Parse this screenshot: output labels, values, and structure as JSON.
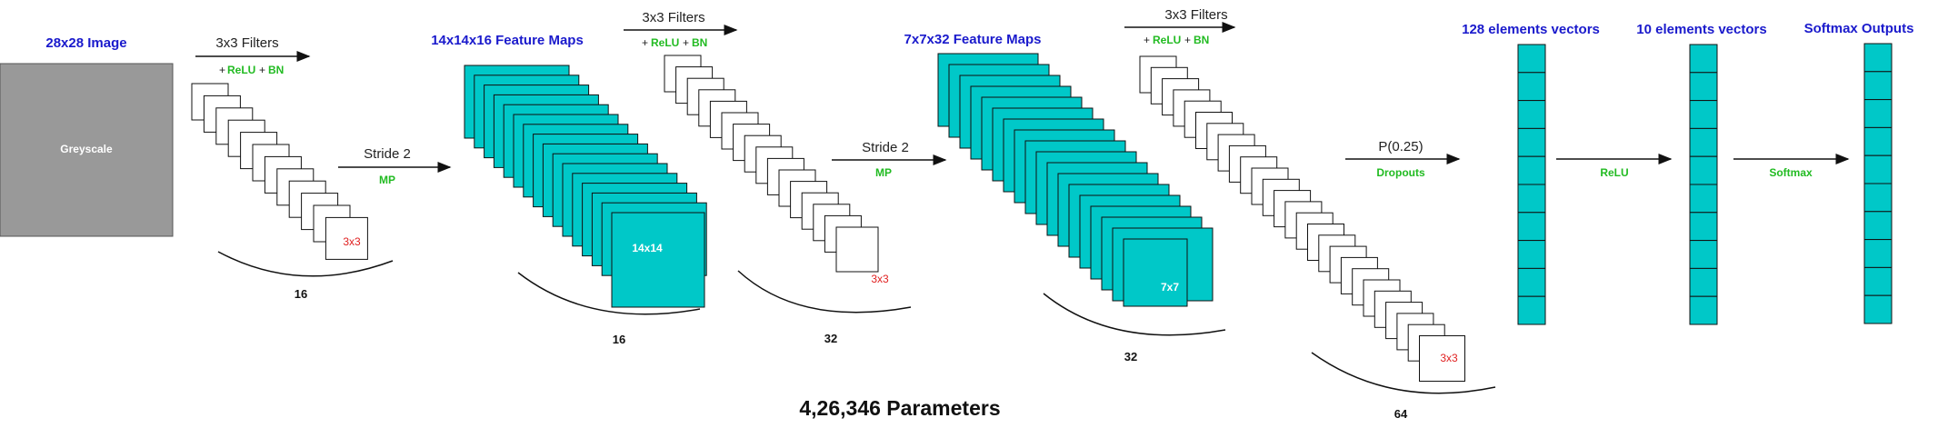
{
  "input": {
    "title": "28x28 Image",
    "label": "Greyscale",
    "color": "#999999"
  },
  "conv1": {
    "filter_title": "3x3 Filters",
    "activation": "ReLU",
    "norm": "BN",
    "plus": "+",
    "kernel": "3x3",
    "count": "16"
  },
  "pool1": {
    "label": "Stride 2",
    "op": "MP"
  },
  "fmap1": {
    "title": "14x14x16 Feature Maps",
    "label": "14x14",
    "count": "16",
    "color": "#00c8c8"
  },
  "conv2": {
    "filter_title": "3x3 Filters",
    "activation": "ReLU",
    "norm": "BN",
    "plus": "+",
    "kernel": "3x3",
    "count": "32"
  },
  "pool2": {
    "label": "Stride 2",
    "op": "MP"
  },
  "fmap2": {
    "title": "7x7x32 Feature Maps",
    "label": "7x7",
    "count": "32"
  },
  "conv3": {
    "filter_title": "3x3 Filters",
    "activation": "ReLU",
    "norm": "BN",
    "plus": "+",
    "kernel": "3x3",
    "count": "64"
  },
  "dropout": {
    "label": "P(0.25)",
    "op": "Dropouts"
  },
  "dense1": {
    "title": "128 elements vectors"
  },
  "act1": {
    "op": "ReLU"
  },
  "dense2": {
    "title": "10 elements vectors"
  },
  "act2": {
    "op": "Softmax"
  },
  "output": {
    "title": "Softmax Outputs"
  },
  "parameters": "4,26,346 Parameters"
}
